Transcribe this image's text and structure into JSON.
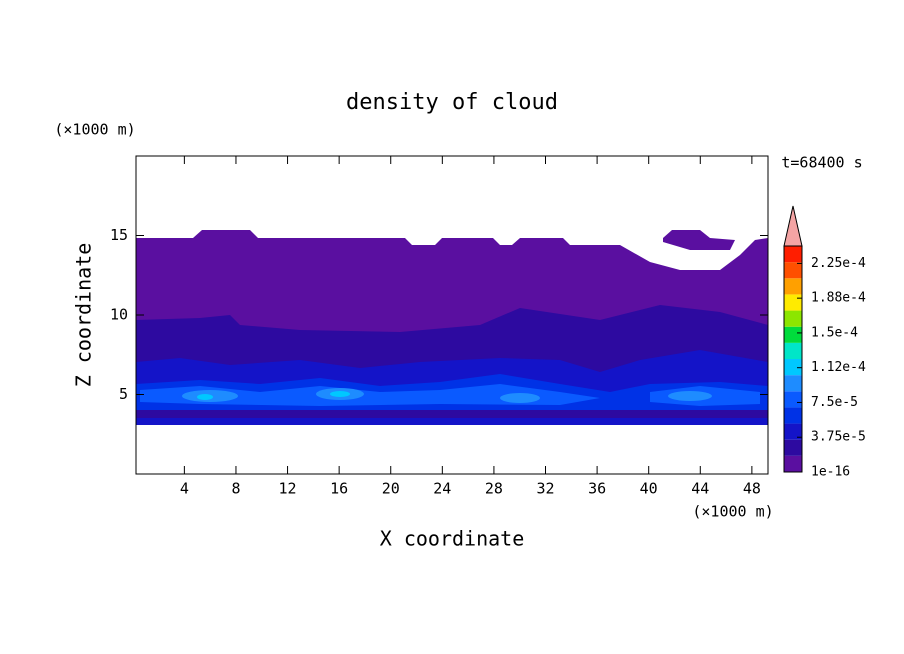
{
  "chart_data": {
    "type": "contour",
    "title": "density of cloud",
    "x_label": "X coordinate",
    "y_label": "Z coordinate",
    "x_unit": "(×1000 m)",
    "y_unit": "(×1000 m)",
    "annotation": "t=68400 s",
    "xlim": [
      0.25,
      49.25
    ],
    "xticks": [
      4,
      8,
      12,
      16,
      20,
      24,
      28,
      32,
      36,
      40,
      44,
      48
    ],
    "ylim": [
      0,
      20
    ],
    "yticks": [
      5,
      10,
      15
    ],
    "clim": [
      1e-16,
      0.00024375
    ],
    "colors": [
      "#5a0fa0",
      "#2d0aa0",
      "#1414c8",
      "#0032e6",
      "#0a5aff",
      "#1e8cff",
      "#00c8ff",
      "#00e6c8",
      "#00dc3c",
      "#8ce600",
      "#ffeb00",
      "#ffa000",
      "#ff5000",
      "#ff1e00"
    ],
    "extend_color": "#f4a4a4",
    "cticks": [
      1e-16,
      {
        "value": 3.75e-05,
        "label": "3.75e-5"
      },
      {
        "value": 7.5e-05,
        "label": "7.5e-5"
      },
      {
        "value": 0.0001125,
        "label": "1.12e-4"
      },
      {
        "value": 0.00015,
        "label": "1.5e-4"
      },
      {
        "value": 0.0001875,
        "label": "1.88e-4"
      },
      {
        "value": 0.000225,
        "label": "2.25e-4"
      }
    ]
  }
}
